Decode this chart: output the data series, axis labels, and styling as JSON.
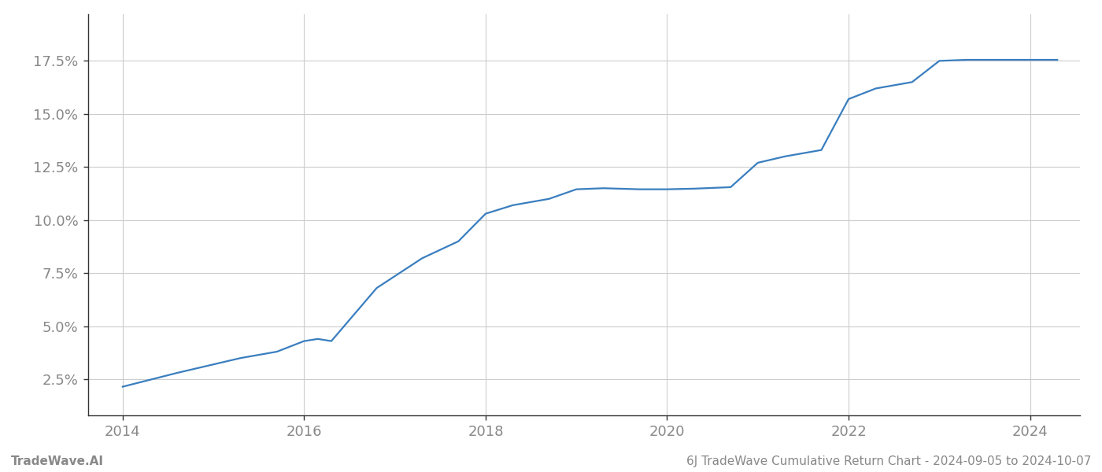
{
  "x": [
    2014.0,
    2014.6,
    2015.0,
    2015.3,
    2015.7,
    2016.0,
    2016.15,
    2016.3,
    2016.8,
    2017.3,
    2017.7,
    2018.0,
    2018.3,
    2018.7,
    2019.0,
    2019.3,
    2019.7,
    2020.0,
    2020.3,
    2020.7,
    2021.0,
    2021.3,
    2021.7,
    2022.0,
    2022.3,
    2022.7,
    2023.0,
    2023.3,
    2023.7,
    2024.0,
    2024.3
  ],
  "y": [
    0.0215,
    0.028,
    0.032,
    0.035,
    0.038,
    0.043,
    0.044,
    0.043,
    0.068,
    0.082,
    0.09,
    0.103,
    0.107,
    0.11,
    0.1145,
    0.115,
    0.1145,
    0.1145,
    0.1148,
    0.1155,
    0.127,
    0.13,
    0.133,
    0.157,
    0.162,
    0.165,
    0.175,
    0.1755,
    0.1755,
    0.1755,
    0.1755
  ],
  "line_color": "#3a7ebf",
  "line_width": 1.6,
  "xlim": [
    2013.62,
    2024.55
  ],
  "ylim": [
    0.008,
    0.197
  ],
  "yticks": [
    0.025,
    0.05,
    0.075,
    0.1,
    0.125,
    0.15,
    0.175
  ],
  "ytick_labels": [
    "2.5%",
    "5.0%",
    "7.5%",
    "10.0%",
    "12.5%",
    "15.0%",
    "17.5%"
  ],
  "xticks": [
    2014,
    2016,
    2018,
    2020,
    2022,
    2024
  ],
  "xtick_labels": [
    "2014",
    "2016",
    "2018",
    "2020",
    "2022",
    "2024"
  ],
  "grid_color": "#cccccc",
  "background_color": "#ffffff",
  "footer_left": "TradeWave.AI",
  "footer_right": "6J TradeWave Cumulative Return Chart - 2024-09-05 to 2024-10-07",
  "footer_color": "#888888",
  "footer_fontsize": 11,
  "tick_label_color": "#888888",
  "tick_label_fontsize": 13
}
